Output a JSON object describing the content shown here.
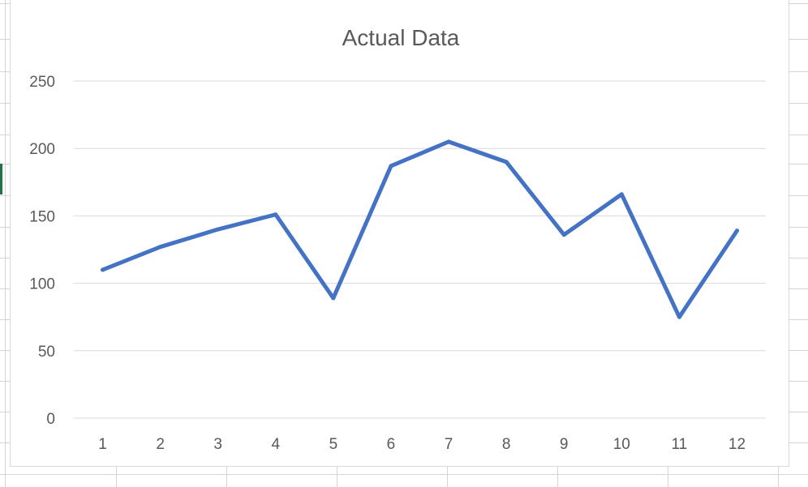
{
  "chart_data": {
    "type": "line",
    "title": "Actual Data",
    "xlabel": "",
    "ylabel": "",
    "categories": [
      "1",
      "2",
      "3",
      "4",
      "5",
      "6",
      "7",
      "8",
      "9",
      "10",
      "11",
      "12"
    ],
    "series": [
      {
        "values": [
          110,
          127,
          140,
          151,
          89,
          187,
          205,
          190,
          136,
          166,
          75,
          139
        ],
        "color": "#4472c4"
      }
    ],
    "ylim": [
      0,
      250
    ],
    "yticks": [
      "0",
      "50",
      "100",
      "150",
      "200",
      "250"
    ],
    "grid": true,
    "legend": "none"
  },
  "colors": {
    "series": "#4472c4",
    "gridline": "#d9d9d9",
    "text": "#595959",
    "sheet_grid": "#d4d4d4",
    "active_cell": "#217346"
  }
}
